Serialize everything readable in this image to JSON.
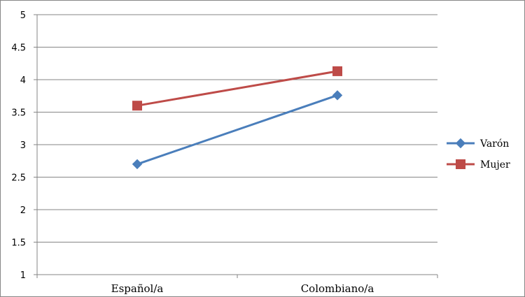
{
  "chart_data": {
    "type": "line",
    "categories": [
      "Español/a",
      "Colombiano/a"
    ],
    "series": [
      {
        "name": "Varón",
        "values": [
          2.7,
          3.76
        ],
        "color": "#4a7ebb",
        "marker": "diamond"
      },
      {
        "name": "Mujer",
        "values": [
          3.6,
          4.13
        ],
        "color": "#be4b48",
        "marker": "square"
      }
    ],
    "ylim": [
      1,
      5
    ],
    "yticks": [
      "1",
      "1.5",
      "2",
      "2.5",
      "3",
      "3.5",
      "4",
      "4.5",
      "5"
    ],
    "grid": true,
    "legend": "right"
  }
}
